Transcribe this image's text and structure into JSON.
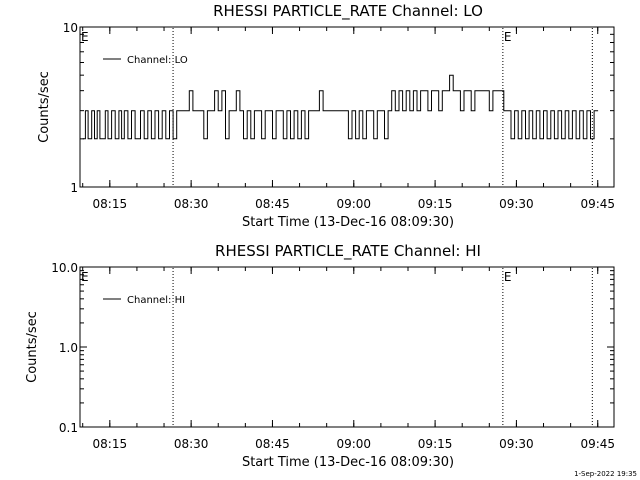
{
  "footer_stamp": "1-Sep-2022 19:35",
  "chart_data": [
    {
      "type": "line",
      "title": "RHESSI PARTICLE_RATE Channel: LO",
      "ylabel": "Counts/sec",
      "xlabel": "Start Time (13-Dec-16 08:09:30)",
      "x_ticks": [
        "08:15",
        "08:30",
        "08:45",
        "09:00",
        "09:15",
        "09:30",
        "09:45"
      ],
      "y_ticks": [
        "1",
        "10"
      ],
      "y_scale": "log",
      "ylim": [
        1,
        10
      ],
      "xlim": [
        "08:09:30",
        "09:48:00"
      ],
      "legend": {
        "label": "Channel: LO",
        "position": "top-left"
      },
      "flag_label": "E",
      "flags": [
        {
          "time": "08:09:30",
          "label": "E"
        },
        {
          "time": "09:27:30",
          "label": "E"
        }
      ],
      "dotted_lines": [
        "08:26:40",
        "09:27:30",
        "09:44:00"
      ],
      "series": [
        {
          "values": [
            [
              "08:10:00",
              2
            ],
            [
              "08:10:30",
              3
            ],
            [
              "08:11:00",
              2
            ],
            [
              "08:11:40",
              3
            ],
            [
              "08:12:10",
              2
            ],
            [
              "08:12:40",
              3
            ],
            [
              "08:13:10",
              2
            ],
            [
              "08:13:40",
              2
            ],
            [
              "08:14:10",
              3
            ],
            [
              "08:14:40",
              2
            ],
            [
              "08:15:20",
              3
            ],
            [
              "08:16:00",
              2
            ],
            [
              "08:16:40",
              3
            ],
            [
              "08:17:10",
              2
            ],
            [
              "08:17:40",
              3
            ],
            [
              "08:18:20",
              2
            ],
            [
              "08:19:00",
              3
            ],
            [
              "08:19:40",
              2
            ],
            [
              "08:20:10",
              2
            ],
            [
              "08:20:40",
              3
            ],
            [
              "08:21:20",
              2
            ],
            [
              "08:22:00",
              3
            ],
            [
              "08:22:40",
              2
            ],
            [
              "08:23:20",
              3
            ],
            [
              "08:24:00",
              2
            ],
            [
              "08:24:40",
              3
            ],
            [
              "08:25:20",
              2
            ],
            [
              "08:26:00",
              3
            ],
            [
              "08:26:40",
              2
            ],
            [
              "08:27:20",
              3
            ],
            [
              "08:28:00",
              3
            ],
            [
              "08:29:00",
              3
            ],
            [
              "08:29:40",
              4
            ],
            [
              "08:30:20",
              3
            ],
            [
              "08:31:00",
              3
            ],
            [
              "08:31:40",
              3
            ],
            [
              "08:32:20",
              2
            ],
            [
              "08:33:00",
              3
            ],
            [
              "08:33:40",
              3
            ],
            [
              "08:34:20",
              4
            ],
            [
              "08:35:00",
              3
            ],
            [
              "08:35:40",
              4
            ],
            [
              "08:36:20",
              2
            ],
            [
              "08:37:00",
              3
            ],
            [
              "08:37:40",
              3
            ],
            [
              "08:38:20",
              4
            ],
            [
              "08:39:00",
              3
            ],
            [
              "08:39:40",
              2
            ],
            [
              "08:40:20",
              3
            ],
            [
              "08:41:00",
              2
            ],
            [
              "08:41:40",
              3
            ],
            [
              "08:42:20",
              3
            ],
            [
              "08:43:00",
              2
            ],
            [
              "08:43:40",
              3
            ],
            [
              "08:44:20",
              3
            ],
            [
              "08:45:00",
              2
            ],
            [
              "08:45:40",
              3
            ],
            [
              "08:46:20",
              3
            ],
            [
              "08:47:00",
              2
            ],
            [
              "08:47:40",
              3
            ],
            [
              "08:48:20",
              2
            ],
            [
              "08:49:00",
              3
            ],
            [
              "08:49:40",
              2
            ],
            [
              "08:50:20",
              3
            ],
            [
              "08:51:00",
              2
            ],
            [
              "08:51:40",
              3
            ],
            [
              "08:52:20",
              3
            ],
            [
              "08:53:00",
              3
            ],
            [
              "08:53:40",
              4
            ],
            [
              "08:54:20",
              3
            ],
            [
              "08:55:00",
              3
            ],
            [
              "08:55:40",
              3
            ],
            [
              "08:56:20",
              3
            ],
            [
              "08:57:00",
              3
            ],
            [
              "08:57:40",
              3
            ],
            [
              "08:58:20",
              3
            ],
            [
              "08:59:00",
              2
            ],
            [
              "08:59:40",
              3
            ],
            [
              "09:00:20",
              2
            ],
            [
              "09:01:00",
              3
            ],
            [
              "09:01:40",
              2
            ],
            [
              "09:02:20",
              3
            ],
            [
              "09:03:00",
              3
            ],
            [
              "09:03:40",
              2
            ],
            [
              "09:04:20",
              3
            ],
            [
              "09:05:00",
              3
            ],
            [
              "09:05:40",
              2
            ],
            [
              "09:06:20",
              3
            ],
            [
              "09:07:00",
              4
            ],
            [
              "09:07:40",
              3
            ],
            [
              "09:08:20",
              4
            ],
            [
              "09:09:00",
              3
            ],
            [
              "09:09:40",
              4
            ],
            [
              "09:10:20",
              3
            ],
            [
              "09:11:00",
              4
            ],
            [
              "09:11:40",
              3
            ],
            [
              "09:12:20",
              4
            ],
            [
              "09:13:00",
              4
            ],
            [
              "09:13:40",
              3
            ],
            [
              "09:14:20",
              4
            ],
            [
              "09:15:00",
              4
            ],
            [
              "09:15:40",
              3
            ],
            [
              "09:16:20",
              4
            ],
            [
              "09:17:00",
              4
            ],
            [
              "09:17:40",
              5
            ],
            [
              "09:18:20",
              4
            ],
            [
              "09:19:00",
              4
            ],
            [
              "09:19:40",
              3
            ],
            [
              "09:20:20",
              4
            ],
            [
              "09:21:00",
              4
            ],
            [
              "09:21:40",
              3
            ],
            [
              "09:22:20",
              4
            ],
            [
              "09:23:00",
              4
            ],
            [
              "09:23:40",
              4
            ],
            [
              "09:24:20",
              4
            ],
            [
              "09:25:00",
              3
            ],
            [
              "09:25:40",
              4
            ],
            [
              "09:26:20",
              4
            ],
            [
              "09:27:00",
              4
            ],
            [
              "09:27:40",
              3
            ],
            [
              "09:28:20",
              3
            ],
            [
              "09:29:00",
              2
            ],
            [
              "09:29:40",
              3
            ],
            [
              "09:30:20",
              2
            ],
            [
              "09:31:00",
              3
            ],
            [
              "09:31:40",
              2
            ],
            [
              "09:32:20",
              3
            ],
            [
              "09:33:00",
              2
            ],
            [
              "09:33:40",
              3
            ],
            [
              "09:34:20",
              2
            ],
            [
              "09:35:00",
              3
            ],
            [
              "09:35:40",
              2
            ],
            [
              "09:36:20",
              3
            ],
            [
              "09:37:00",
              2
            ],
            [
              "09:37:40",
              3
            ],
            [
              "09:38:20",
              2
            ],
            [
              "09:39:00",
              3
            ],
            [
              "09:39:40",
              2
            ],
            [
              "09:40:20",
              3
            ],
            [
              "09:41:00",
              2
            ],
            [
              "09:41:40",
              3
            ],
            [
              "09:42:20",
              2
            ],
            [
              "09:43:00",
              3
            ],
            [
              "09:43:40",
              2
            ],
            [
              "09:44:20",
              3
            ]
          ]
        }
      ]
    },
    {
      "type": "line",
      "title": "RHESSI PARTICLE_RATE Channel: HI",
      "ylabel": "Counts/sec",
      "xlabel": "Start Time (13-Dec-16 08:09:30)",
      "x_ticks": [
        "08:15",
        "08:30",
        "08:45",
        "09:00",
        "09:15",
        "09:30",
        "09:45"
      ],
      "y_ticks": [
        "0.1",
        "1.0",
        "10.0"
      ],
      "y_scale": "log",
      "ylim": [
        0.1,
        10
      ],
      "xlim": [
        "08:09:30",
        "09:48:00"
      ],
      "legend": {
        "label": "Channel: HI",
        "position": "top-left"
      },
      "flag_label": "E",
      "flags": [
        {
          "time": "08:09:30",
          "label": "E"
        },
        {
          "time": "09:27:30",
          "label": "E"
        }
      ],
      "dotted_lines": [
        "08:26:40",
        "09:27:30",
        "09:44:00"
      ],
      "series": [
        {
          "values": []
        }
      ]
    }
  ]
}
